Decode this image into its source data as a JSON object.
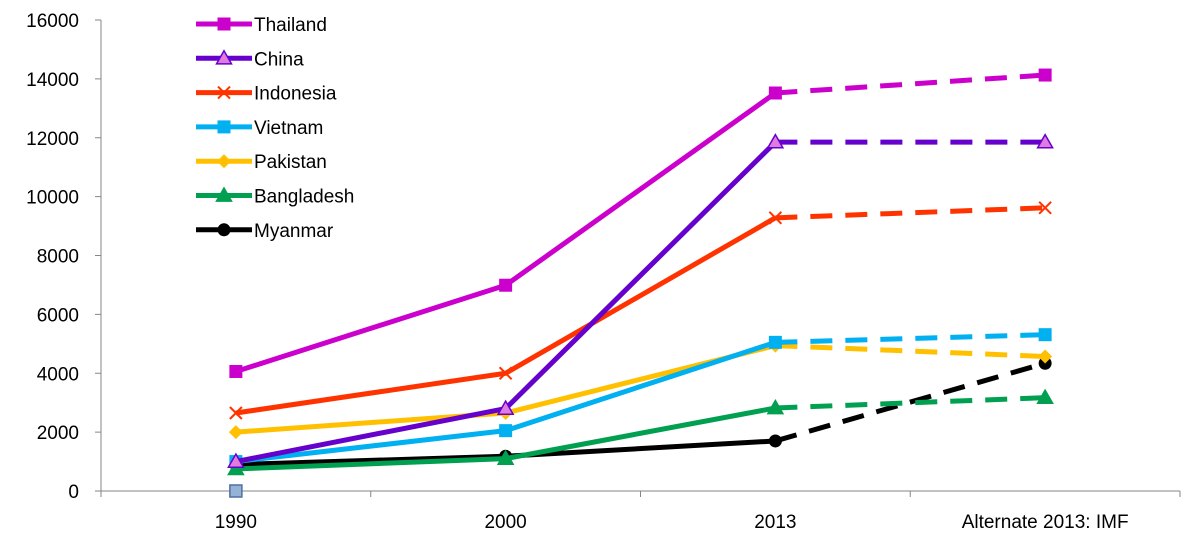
{
  "chart_data": {
    "type": "line",
    "title": "",
    "xlabel": "",
    "ylabel": "",
    "categories": [
      "1990",
      "2000",
      "2013",
      "Alternate 2013: IMF"
    ],
    "ylim": [
      0,
      16000
    ],
    "yticks": [
      0,
      2000,
      4000,
      6000,
      8000,
      10000,
      12000,
      14000,
      16000
    ],
    "grid": false,
    "legend": "top-left",
    "series": [
      {
        "name": "Thailand",
        "color": "#CC00CC",
        "marker": "square",
        "values": [
          4060,
          6990,
          13520,
          14130
        ]
      },
      {
        "name": "China",
        "color": "#6600CC",
        "marker": "triangle",
        "values": [
          1000,
          2800,
          11850,
          11850
        ]
      },
      {
        "name": "Indonesia",
        "color": "#FF3300",
        "marker": "x",
        "values": [
          2650,
          4000,
          9280,
          9620
        ]
      },
      {
        "name": "Vietnam",
        "color": "#00B0F0",
        "marker": "square",
        "values": [
          1000,
          2050,
          5050,
          5310
        ]
      },
      {
        "name": "Pakistan",
        "color": "#FFC000",
        "marker": "diamond",
        "values": [
          2000,
          2650,
          4940,
          4570
        ]
      },
      {
        "name": "Bangladesh",
        "color": "#00A050",
        "marker": "triangle",
        "values": [
          750,
          1100,
          2820,
          3170
        ]
      },
      {
        "name": "Myanmar",
        "color": "#000000",
        "marker": "circle",
        "values": [
          900,
          1180,
          1700,
          4340
        ]
      }
    ],
    "extra_point": {
      "category": "1990",
      "value": 0,
      "color": "#95B3D7",
      "marker": "square"
    }
  }
}
